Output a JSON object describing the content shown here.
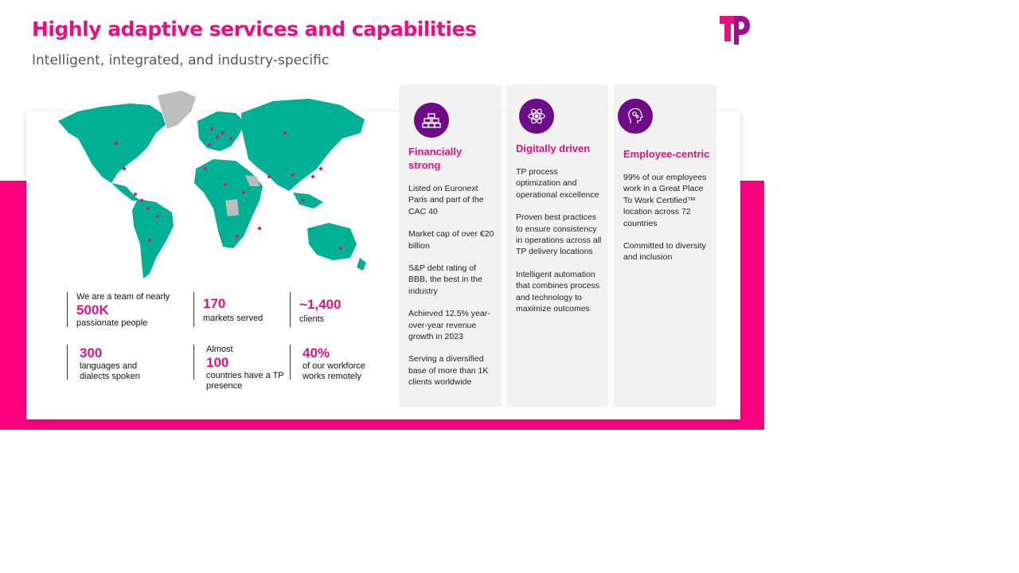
{
  "title": "Highly adaptive services and capabilities",
  "subtitle": "Intelligent, integrated, and industry-specific",
  "brand": {
    "accent": "#e6117e",
    "band": "#ff0080",
    "icon_bg": "#6e0b87",
    "map": "#00b094"
  },
  "logo": {
    "icon": "tp-logo-icon"
  },
  "stats": [
    {
      "pre": "We are a team of nearly",
      "big": "500K",
      "post": "passionate people"
    },
    {
      "pre": "",
      "big": "170",
      "post": "markets served"
    },
    {
      "pre": "",
      "big": "~1,400",
      "post": "clients"
    },
    {
      "pre": "",
      "big": "300",
      "post": "languages and dialects spoken"
    },
    {
      "pre": "Almost",
      "big": "100",
      "post": "countries have a TP presence"
    },
    {
      "pre": "",
      "big": "40%",
      "post": "of our workforce works remotely"
    }
  ],
  "columns": [
    {
      "icon": "gold-bars-icon",
      "heading": "Financially strong",
      "items": [
        "Listed on Euronext Paris and part of the CAC 40",
        "Market cap of over €20 billion",
        "S&P debt rating of BBB, the best in the industry",
        "Achieved 12.5% year-over-year revenue growth in 2023",
        "Serving a diversified base of more than 1K clients worldwide"
      ]
    },
    {
      "icon": "atom-icon",
      "heading": "Digitally driven",
      "items": [
        "TP process optimization and operational excellence",
        "Proven best practices to ensure consistency in operations across all TP delivery locations",
        "Intelligent automation that combines process and technology to maximize outcomes"
      ]
    },
    {
      "icon": "head-gears-icon",
      "heading": "Employee-centric",
      "items": [
        "99% of our employees work in a Great Place To Work Certified™ location across 72 countries",
        "Committed to diversity and inclusion"
      ]
    }
  ]
}
